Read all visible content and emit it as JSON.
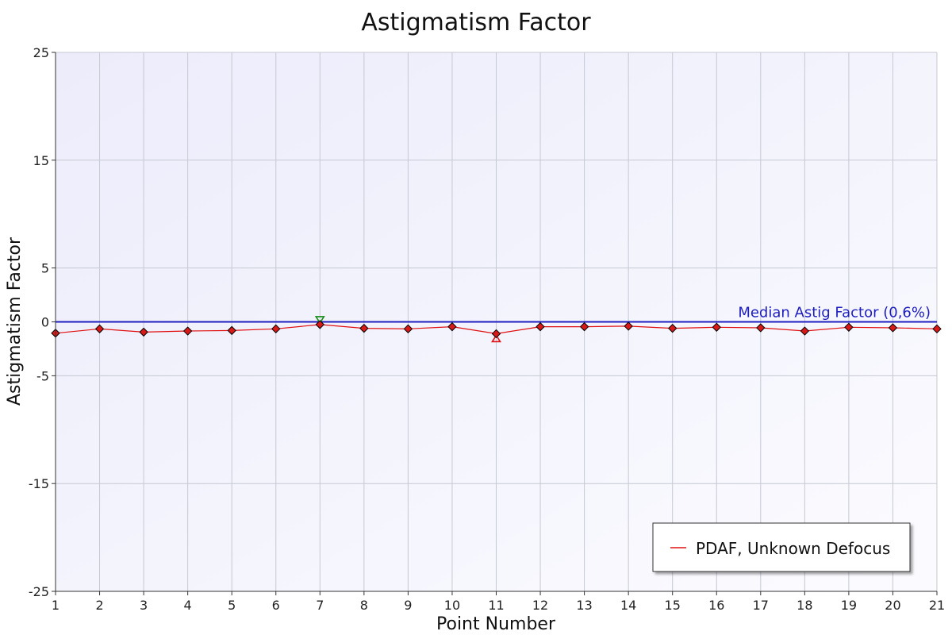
{
  "chart_data": {
    "type": "line",
    "title": "Astigmatism Factor",
    "xlabel": "Point Number",
    "ylabel": "Astigmatism Factor",
    "xlim": [
      1,
      21
    ],
    "ylim": [
      -25,
      25
    ],
    "xticks": [
      "1",
      "2",
      "3",
      "4",
      "5",
      "6",
      "7",
      "8",
      "9",
      "10",
      "11",
      "12",
      "13",
      "14",
      "15",
      "16",
      "17",
      "18",
      "19",
      "20",
      "21"
    ],
    "yticks": [
      25,
      15,
      5,
      0,
      -5,
      -15,
      -25
    ],
    "ytick_labels": [
      "25",
      "15",
      "5",
      "0",
      "-5",
      "-15",
      "-25"
    ],
    "grid": true,
    "series": [
      {
        "name": "PDAF, Unknown Defocus",
        "color": "#e01010",
        "marker": "diamond",
        "x": [
          1,
          2,
          3,
          4,
          5,
          6,
          7,
          8,
          9,
          10,
          11,
          12,
          13,
          14,
          15,
          16,
          17,
          18,
          19,
          20,
          21
        ],
        "values": [
          -1.05,
          -0.65,
          -0.95,
          -0.85,
          -0.8,
          -0.65,
          -0.25,
          -0.6,
          -0.65,
          -0.45,
          -1.1,
          -0.45,
          -0.45,
          -0.4,
          -0.6,
          -0.5,
          -0.55,
          -0.85,
          -0.5,
          -0.55,
          -0.65
        ]
      }
    ],
    "reference_line": {
      "label": "Median Astig Factor (0,6%)",
      "value": 0,
      "color": "#1d1dc0"
    },
    "markers": {
      "max": {
        "x": 7,
        "value": -0.25,
        "color": "#138a13",
        "symbol": "triangle-down"
      },
      "min": {
        "x": 11,
        "value": -1.1,
        "color": "#e01010",
        "symbol": "triangle-up"
      }
    },
    "legend": {
      "position": "bottom-right"
    }
  }
}
